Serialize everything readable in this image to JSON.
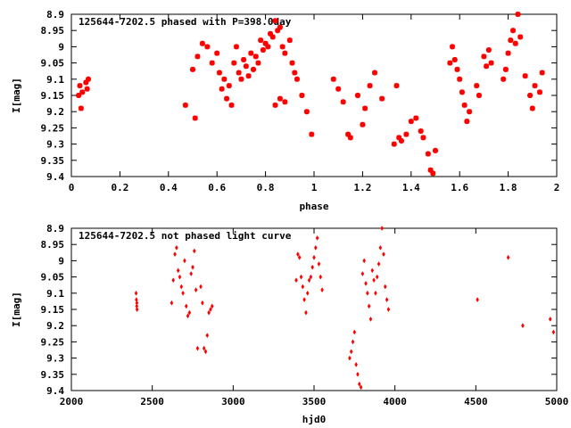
{
  "chart_data": [
    {
      "type": "scatter",
      "title": "125644-7202.5 phased with P=398.0day",
      "xlabel": "phase",
      "ylabel": "I[mag]",
      "xlim": [
        0,
        2
      ],
      "ylim": [
        9.4,
        8.9
      ],
      "y_inverted": true,
      "grid": false,
      "marker_color": "#ff0000",
      "marker": "star",
      "xticks": [
        "0",
        "0.2",
        "0.4",
        "0.6",
        "0.8",
        "1",
        "1.2",
        "1.4",
        "1.6",
        "1.8",
        "2"
      ],
      "yticks": [
        "8.9",
        "8.95",
        "9",
        "9.05",
        "9.1",
        "9.15",
        "9.2",
        "9.25",
        "9.3",
        "9.35",
        "9.4"
      ],
      "series": [
        {
          "points": [
            [
              0.03,
              9.15
            ],
            [
              0.035,
              9.12
            ],
            [
              0.04,
              9.19
            ],
            [
              0.045,
              9.14
            ],
            [
              0.06,
              9.11
            ],
            [
              0.065,
              9.13
            ],
            [
              0.07,
              9.1
            ],
            [
              0.47,
              9.18
            ],
            [
              0.5,
              9.07
            ],
            [
              0.51,
              9.22
            ],
            [
              0.52,
              9.03
            ],
            [
              0.54,
              8.99
            ],
            [
              0.56,
              9.0
            ],
            [
              0.58,
              9.05
            ],
            [
              0.6,
              9.02
            ],
            [
              0.61,
              9.08
            ],
            [
              0.62,
              9.13
            ],
            [
              0.63,
              9.1
            ],
            [
              0.64,
              9.16
            ],
            [
              0.65,
              9.12
            ],
            [
              0.66,
              9.18
            ],
            [
              0.67,
              9.05
            ],
            [
              0.68,
              9.0
            ],
            [
              0.69,
              9.08
            ],
            [
              0.7,
              9.1
            ],
            [
              0.71,
              9.04
            ],
            [
              0.72,
              9.06
            ],
            [
              0.73,
              9.09
            ],
            [
              0.74,
              9.02
            ],
            [
              0.75,
              9.07
            ],
            [
              0.76,
              9.03
            ],
            [
              0.77,
              9.05
            ],
            [
              0.78,
              8.98
            ],
            [
              0.79,
              9.01
            ],
            [
              0.8,
              8.99
            ],
            [
              0.81,
              9.0
            ],
            [
              0.82,
              8.96
            ],
            [
              0.83,
              8.97
            ],
            [
              0.84,
              8.92
            ],
            [
              0.85,
              8.95
            ],
            [
              0.86,
              8.94
            ],
            [
              0.87,
              9.0
            ],
            [
              0.88,
              9.02
            ],
            [
              0.9,
              8.98
            ],
            [
              0.91,
              9.05
            ],
            [
              0.92,
              9.08
            ],
            [
              0.93,
              9.1
            ],
            [
              0.95,
              9.15
            ],
            [
              0.97,
              9.2
            ],
            [
              0.99,
              9.27
            ],
            [
              0.84,
              9.18
            ],
            [
              0.86,
              9.16
            ],
            [
              0.88,
              9.17
            ],
            [
              1.08,
              9.1
            ],
            [
              1.1,
              9.13
            ],
            [
              1.12,
              9.17
            ],
            [
              1.14,
              9.27
            ],
            [
              1.15,
              9.28
            ],
            [
              1.18,
              9.15
            ],
            [
              1.2,
              9.24
            ],
            [
              1.21,
              9.19
            ],
            [
              1.23,
              9.12
            ],
            [
              1.25,
              9.08
            ],
            [
              1.28,
              9.16
            ],
            [
              1.33,
              9.3
            ],
            [
              1.34,
              9.12
            ],
            [
              1.35,
              9.28
            ],
            [
              1.36,
              9.29
            ],
            [
              1.38,
              9.27
            ],
            [
              1.4,
              9.23
            ],
            [
              1.42,
              9.22
            ],
            [
              1.44,
              9.26
            ],
            [
              1.45,
              9.28
            ],
            [
              1.47,
              9.33
            ],
            [
              1.48,
              9.38
            ],
            [
              1.49,
              9.39
            ],
            [
              1.5,
              9.32
            ],
            [
              1.56,
              9.05
            ],
            [
              1.57,
              9.0
            ],
            [
              1.58,
              9.04
            ],
            [
              1.59,
              9.07
            ],
            [
              1.6,
              9.1
            ],
            [
              1.61,
              9.14
            ],
            [
              1.62,
              9.18
            ],
            [
              1.63,
              9.23
            ],
            [
              1.64,
              9.2
            ],
            [
              1.67,
              9.12
            ],
            [
              1.68,
              9.15
            ],
            [
              1.7,
              9.03
            ],
            [
              1.71,
              9.06
            ],
            [
              1.72,
              9.01
            ],
            [
              1.73,
              9.05
            ],
            [
              1.78,
              9.1
            ],
            [
              1.79,
              9.07
            ],
            [
              1.8,
              9.02
            ],
            [
              1.81,
              8.98
            ],
            [
              1.82,
              8.95
            ],
            [
              1.83,
              8.99
            ],
            [
              1.84,
              8.9
            ],
            [
              1.85,
              8.97
            ],
            [
              1.87,
              9.09
            ],
            [
              1.89,
              9.15
            ],
            [
              1.9,
              9.19
            ],
            [
              1.91,
              9.12
            ],
            [
              1.93,
              9.14
            ],
            [
              1.94,
              9.08
            ]
          ]
        }
      ]
    },
    {
      "type": "scatter",
      "title": "125644-7202.5 not phased light curve",
      "xlabel": "hjd0",
      "ylabel": "I[mag]",
      "xlim": [
        2000,
        5000
      ],
      "ylim": [
        9.4,
        8.9
      ],
      "y_inverted": true,
      "grid": false,
      "marker_color": "#ff0000",
      "marker": "diamond",
      "xticks": [
        "2000",
        "2500",
        "3000",
        "3500",
        "4000",
        "4500",
        "5000"
      ],
      "yticks": [
        "8.9",
        "8.95",
        "9",
        "9.05",
        "9.1",
        "9.15",
        "9.2",
        "9.25",
        "9.3",
        "9.35",
        "9.4"
      ],
      "series": [
        {
          "points": [
            [
              2400,
              9.1
            ],
            [
              2402,
              9.12
            ],
            [
              2404,
              9.14
            ],
            [
              2406,
              9.15
            ],
            [
              2405,
              9.13
            ],
            [
              2620,
              9.13
            ],
            [
              2630,
              9.06
            ],
            [
              2640,
              8.98
            ],
            [
              2650,
              8.96
            ],
            [
              2660,
              9.03
            ],
            [
              2670,
              9.05
            ],
            [
              2680,
              9.08
            ],
            [
              2690,
              9.1
            ],
            [
              2700,
              9.0
            ],
            [
              2710,
              9.14
            ],
            [
              2720,
              9.17
            ],
            [
              2730,
              9.16
            ],
            [
              2740,
              9.04
            ],
            [
              2750,
              9.02
            ],
            [
              2760,
              8.97
            ],
            [
              2770,
              9.09
            ],
            [
              2780,
              9.27
            ],
            [
              2800,
              9.08
            ],
            [
              2810,
              9.13
            ],
            [
              2820,
              9.27
            ],
            [
              2830,
              9.28
            ],
            [
              2840,
              9.23
            ],
            [
              2850,
              9.16
            ],
            [
              2860,
              9.15
            ],
            [
              2870,
              9.14
            ],
            [
              3390,
              9.06
            ],
            [
              3400,
              8.98
            ],
            [
              3410,
              8.99
            ],
            [
              3420,
              9.05
            ],
            [
              3430,
              9.08
            ],
            [
              3440,
              9.12
            ],
            [
              3450,
              9.16
            ],
            [
              3460,
              9.1
            ],
            [
              3470,
              9.06
            ],
            [
              3480,
              9.05
            ],
            [
              3490,
              9.02
            ],
            [
              3500,
              8.99
            ],
            [
              3510,
              8.96
            ],
            [
              3520,
              8.93
            ],
            [
              3530,
              9.01
            ],
            [
              3540,
              9.05
            ],
            [
              3550,
              9.09
            ],
            [
              3720,
              9.3
            ],
            [
              3730,
              9.28
            ],
            [
              3740,
              9.25
            ],
            [
              3750,
              9.22
            ],
            [
              3760,
              9.32
            ],
            [
              3770,
              9.35
            ],
            [
              3780,
              9.38
            ],
            [
              3790,
              9.39
            ],
            [
              3800,
              9.04
            ],
            [
              3810,
              9.0
            ],
            [
              3820,
              9.07
            ],
            [
              3830,
              9.1
            ],
            [
              3840,
              9.14
            ],
            [
              3850,
              9.18
            ],
            [
              3860,
              9.03
            ],
            [
              3870,
              9.06
            ],
            [
              3880,
              9.1
            ],
            [
              3890,
              9.05
            ],
            [
              3900,
              9.01
            ],
            [
              3910,
              8.96
            ],
            [
              3920,
              8.9
            ],
            [
              3930,
              8.98
            ],
            [
              3940,
              9.08
            ],
            [
              3950,
              9.12
            ],
            [
              3960,
              9.15
            ],
            [
              4510,
              9.12
            ],
            [
              4700,
              8.99
            ],
            [
              4790,
              9.2
            ],
            [
              4960,
              9.18
            ],
            [
              4980,
              9.22
            ]
          ]
        }
      ]
    }
  ]
}
